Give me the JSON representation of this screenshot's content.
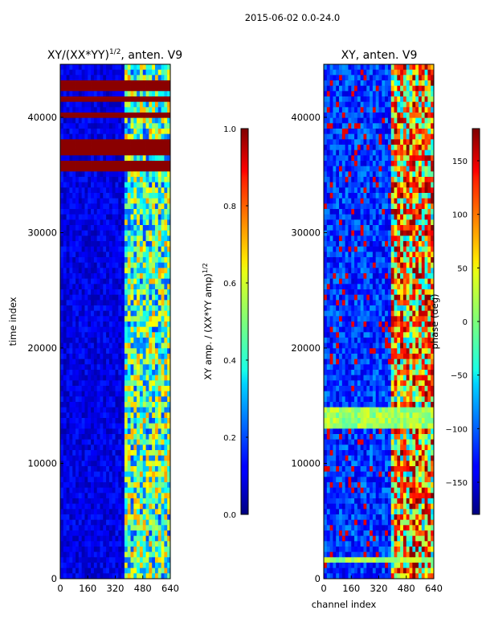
{
  "figure_title": "2015-06-02 0.0-24.0",
  "chart_data": [
    {
      "type": "heatmap",
      "title_main": "XY/(XX*YY)",
      "title_exp": "1/2",
      "title_tail": ", anten. V9",
      "xlabel": "",
      "ylabel": "time index",
      "xlim": [
        0,
        640
      ],
      "ylim": [
        0,
        44600
      ],
      "xticks": [
        0,
        160,
        320,
        480,
        640
      ],
      "xtick_labels": [
        "0",
        "160",
        "320",
        "480",
        "640"
      ],
      "yticks": [
        0,
        10000,
        20000,
        30000,
        40000
      ],
      "ytick_labels": [
        "0",
        "10000",
        "20000",
        "30000",
        "40000"
      ],
      "colormap": "jet",
      "colorbar": {
        "label_main": "XY amp. / (XX*YY amp)",
        "label_exp": "1/2",
        "range": [
          0.0,
          1.0
        ],
        "ticks": [
          0.0,
          0.2,
          0.4,
          0.6,
          0.8,
          1.0
        ],
        "tick_labels": [
          "0.0",
          "0.2",
          "0.4",
          "0.6",
          "0.8",
          "1.0"
        ]
      },
      "bright_channel_band": [
        380,
        640
      ],
      "saturated_time_bands": [
        [
          35300,
          36200
        ],
        [
          39800,
          40400
        ],
        [
          41400,
          42000
        ],
        [
          42300,
          43200
        ],
        [
          36800,
          37900
        ]
      ]
    },
    {
      "type": "heatmap",
      "title_main": "XY, anten. V9",
      "title_exp": "",
      "title_tail": "",
      "xlabel": "channel index",
      "ylabel": "",
      "xlim": [
        0,
        640
      ],
      "ylim": [
        0,
        44600
      ],
      "xticks": [
        0,
        160,
        320,
        480,
        640
      ],
      "xtick_labels": [
        "0",
        "160",
        "320",
        "480",
        "640"
      ],
      "yticks": [
        0,
        10000,
        20000,
        30000,
        40000
      ],
      "ytick_labels": [
        "0",
        "10000",
        "20000",
        "30000",
        "40000"
      ],
      "colormap": "jet",
      "colorbar": {
        "label_main": "phase (deg)",
        "label_exp": "",
        "range": [
          -180,
          180
        ],
        "ticks": [
          -150,
          -100,
          -50,
          0,
          50,
          100,
          150
        ],
        "tick_labels": [
          "−150",
          "−100",
          "−50",
          "0",
          "50",
          "100",
          "150"
        ]
      },
      "bright_channel_band": [
        400,
        640
      ],
      "saturated_time_bands": [
        [
          12800,
          14800
        ],
        [
          1200,
          1800
        ]
      ]
    }
  ]
}
